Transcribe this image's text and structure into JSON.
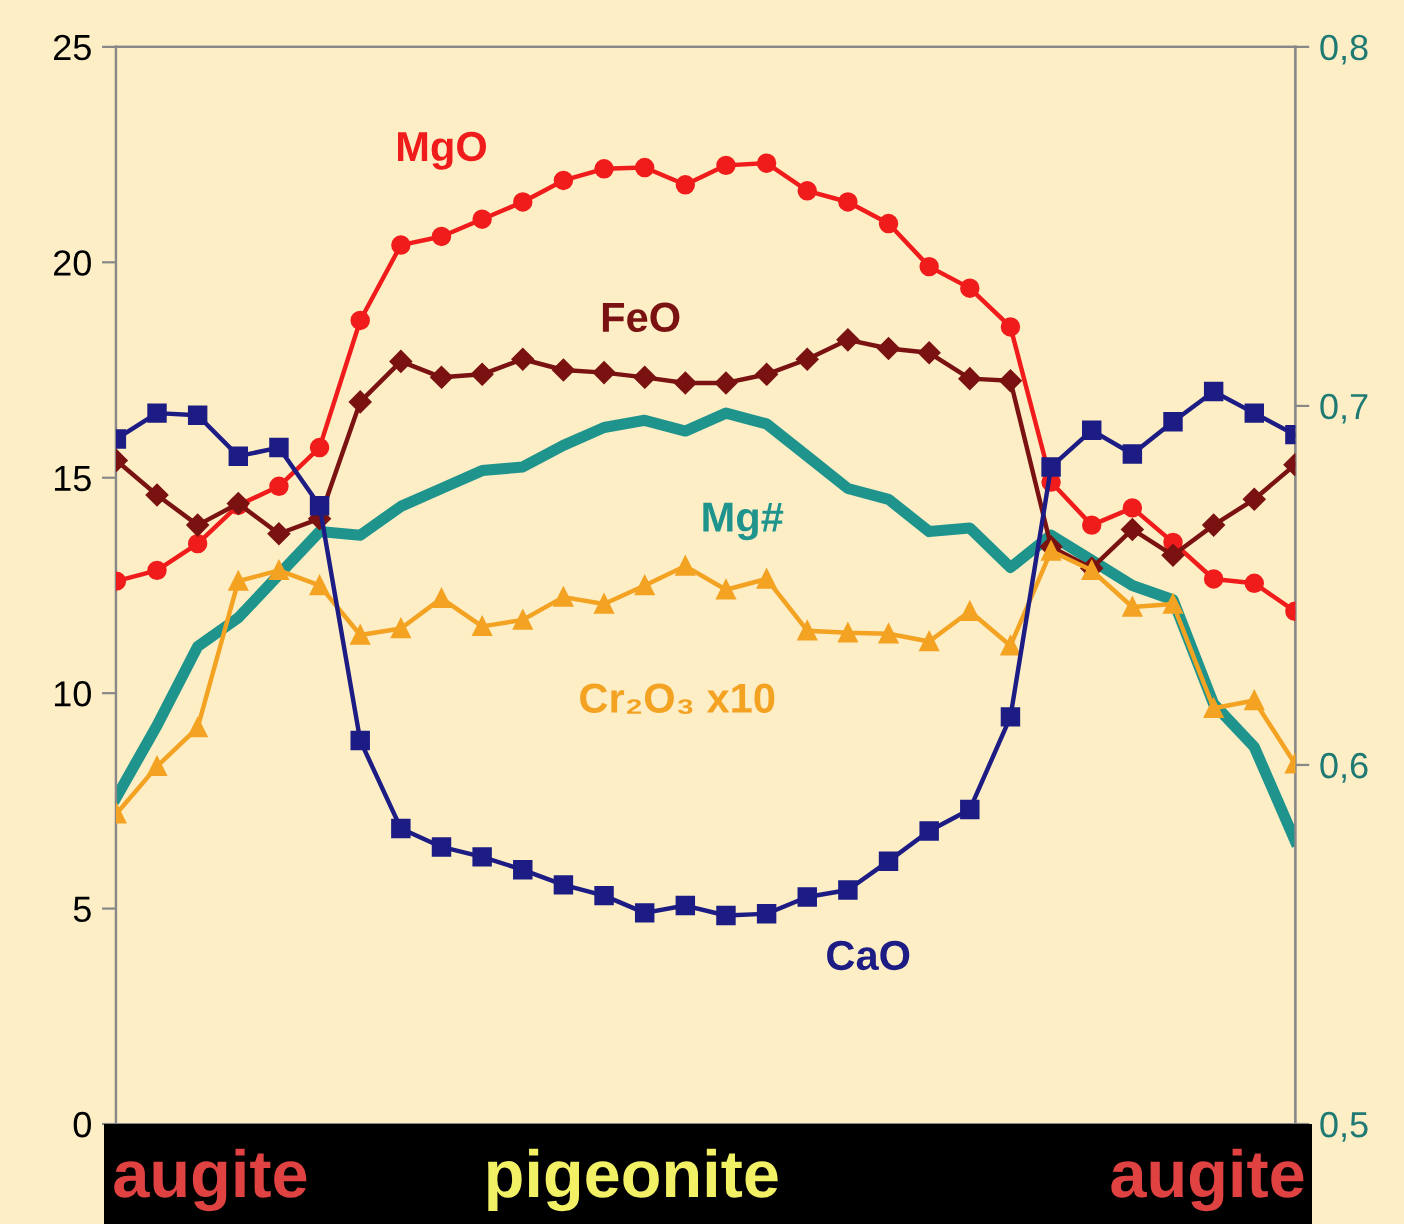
{
  "chart_data": {
    "type": "line",
    "categories": [
      null,
      null,
      null,
      null,
      null,
      null,
      null,
      null,
      null,
      null,
      null,
      null,
      null,
      null,
      null,
      null,
      null,
      null,
      null,
      null,
      null,
      null,
      null,
      null,
      null,
      null,
      null,
      null,
      null,
      null
    ],
    "series": [
      {
        "name": "MgO",
        "color": "#f01c1c",
        "marker": "circle",
        "values": [
          12.6,
          12.85,
          13.47,
          14.36,
          14.8,
          15.7,
          18.65,
          20.4,
          20.6,
          21.0,
          21.4,
          21.9,
          22.17,
          22.2,
          21.8,
          22.25,
          22.3,
          21.66,
          21.4,
          20.9,
          19.9,
          19.4,
          18.5,
          14.9,
          13.9,
          14.3,
          13.5,
          12.65,
          12.55,
          11.9
        ]
      },
      {
        "name": "FeO",
        "color": "#7a1212",
        "marker": "diamond",
        "values": [
          15.4,
          14.6,
          13.9,
          14.4,
          13.7,
          14.05,
          16.76,
          17.7,
          17.33,
          17.4,
          17.75,
          17.5,
          17.44,
          17.33,
          17.2,
          17.2,
          17.4,
          17.75,
          18.2,
          18.0,
          17.9,
          17.3,
          17.25,
          13.4,
          12.9,
          13.8,
          13.2,
          13.9,
          14.5,
          15.3
        ]
      },
      {
        "name": "Mg#",
        "color": "#1f948c",
        "marker": "none",
        "axis": "y2",
        "values": [
          0.591,
          0.611,
          0.633,
          0.641,
          0.653,
          0.665,
          0.664,
          0.672,
          0.677,
          0.682,
          0.683,
          0.689,
          0.694,
          0.696,
          0.693,
          0.698,
          0.695,
          0.686,
          0.677,
          0.674,
          0.665,
          0.666,
          0.655,
          0.664,
          0.657,
          0.65,
          0.646,
          0.617,
          0.605,
          0.579
        ]
      },
      {
        "name": "Cr₂O₃ x10",
        "color": "#f3a222",
        "marker": "triangle",
        "values": [
          7.2,
          8.3,
          9.2,
          12.6,
          12.85,
          12.5,
          11.35,
          11.5,
          12.2,
          11.55,
          11.7,
          12.23,
          12.07,
          12.5,
          12.95,
          12.4,
          12.65,
          11.45,
          11.4,
          11.38,
          11.2,
          11.9,
          11.1,
          13.3,
          12.85,
          12.0,
          12.07,
          9.65,
          9.83,
          8.36
        ]
      },
      {
        "name": "CaO",
        "color": "#1c1c84",
        "marker": "square",
        "values": [
          15.9,
          16.5,
          16.45,
          15.5,
          15.7,
          14.35,
          8.9,
          6.86,
          6.43,
          6.2,
          5.9,
          5.55,
          5.3,
          4.9,
          5.07,
          4.84,
          4.88,
          5.27,
          5.43,
          6.1,
          6.8,
          7.3,
          9.45,
          15.25,
          16.1,
          15.55,
          16.3,
          17.0,
          16.5,
          16.0
        ]
      }
    ],
    "ylim": [
      0,
      25
    ],
    "yticks": [
      0,
      5,
      10,
      15,
      20,
      25
    ],
    "y2lim": [
      0.5,
      0.8
    ],
    "y2ticks": [
      {
        "value": 0.5,
        "label": "0,5"
      },
      {
        "value": 0.6,
        "label": "0,6"
      },
      {
        "value": 0.7,
        "label": "0,7"
      },
      {
        "value": 0.8,
        "label": "0,8"
      }
    ],
    "grid": false,
    "legend": false,
    "annotations": [
      "augite",
      "pigeonite",
      "augite"
    ]
  }
}
